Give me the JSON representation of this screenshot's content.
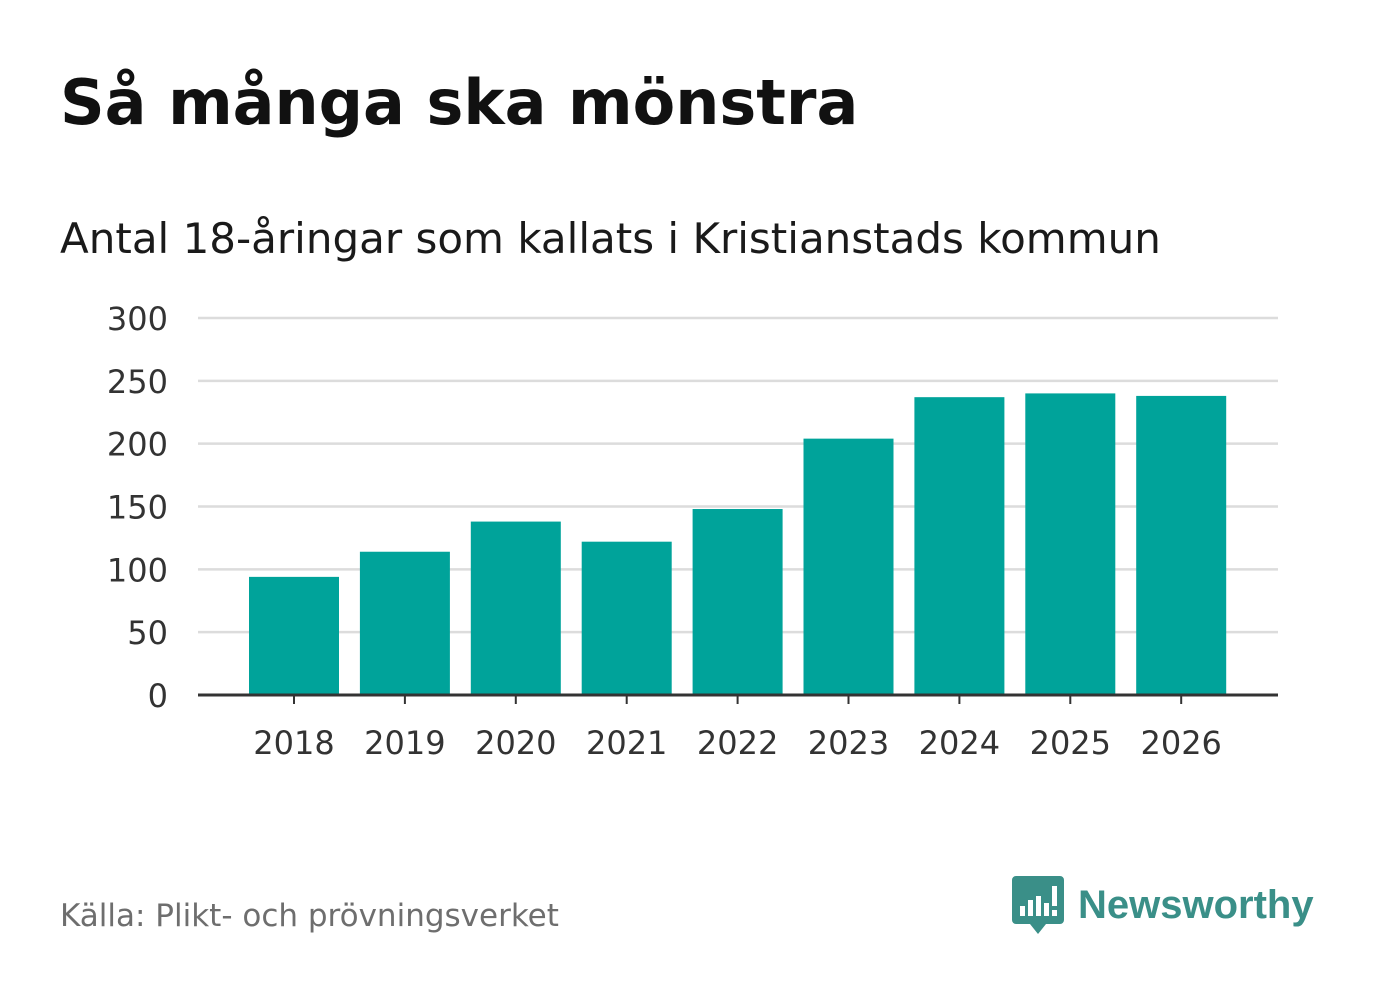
{
  "title": "Så många ska mönstra",
  "subtitle": "Antal 18-åringar som kallats i Kristianstads kommun",
  "source": "Källa: Plikt- och prövningsverket",
  "logo": {
    "text": "Newsworthy",
    "icon": "newsworthy-bar-chart-icon"
  },
  "colors": {
    "bar": "#00a39a",
    "grid": "#dcdcdc",
    "axis": "#333333",
    "logo": "#3a8f88"
  },
  "chart_data": {
    "type": "bar",
    "title": "Så många ska mönstra",
    "subtitle": "Antal 18-åringar som kallats i Kristianstads kommun",
    "xlabel": "",
    "ylabel": "",
    "categories": [
      "2018",
      "2019",
      "2020",
      "2021",
      "2022",
      "2023",
      "2024",
      "2025",
      "2026"
    ],
    "values": [
      94,
      114,
      138,
      122,
      148,
      204,
      237,
      240,
      238
    ],
    "ylim": [
      0,
      300
    ],
    "yticks": [
      0,
      50,
      100,
      150,
      200,
      250,
      300
    ],
    "grid": true
  }
}
